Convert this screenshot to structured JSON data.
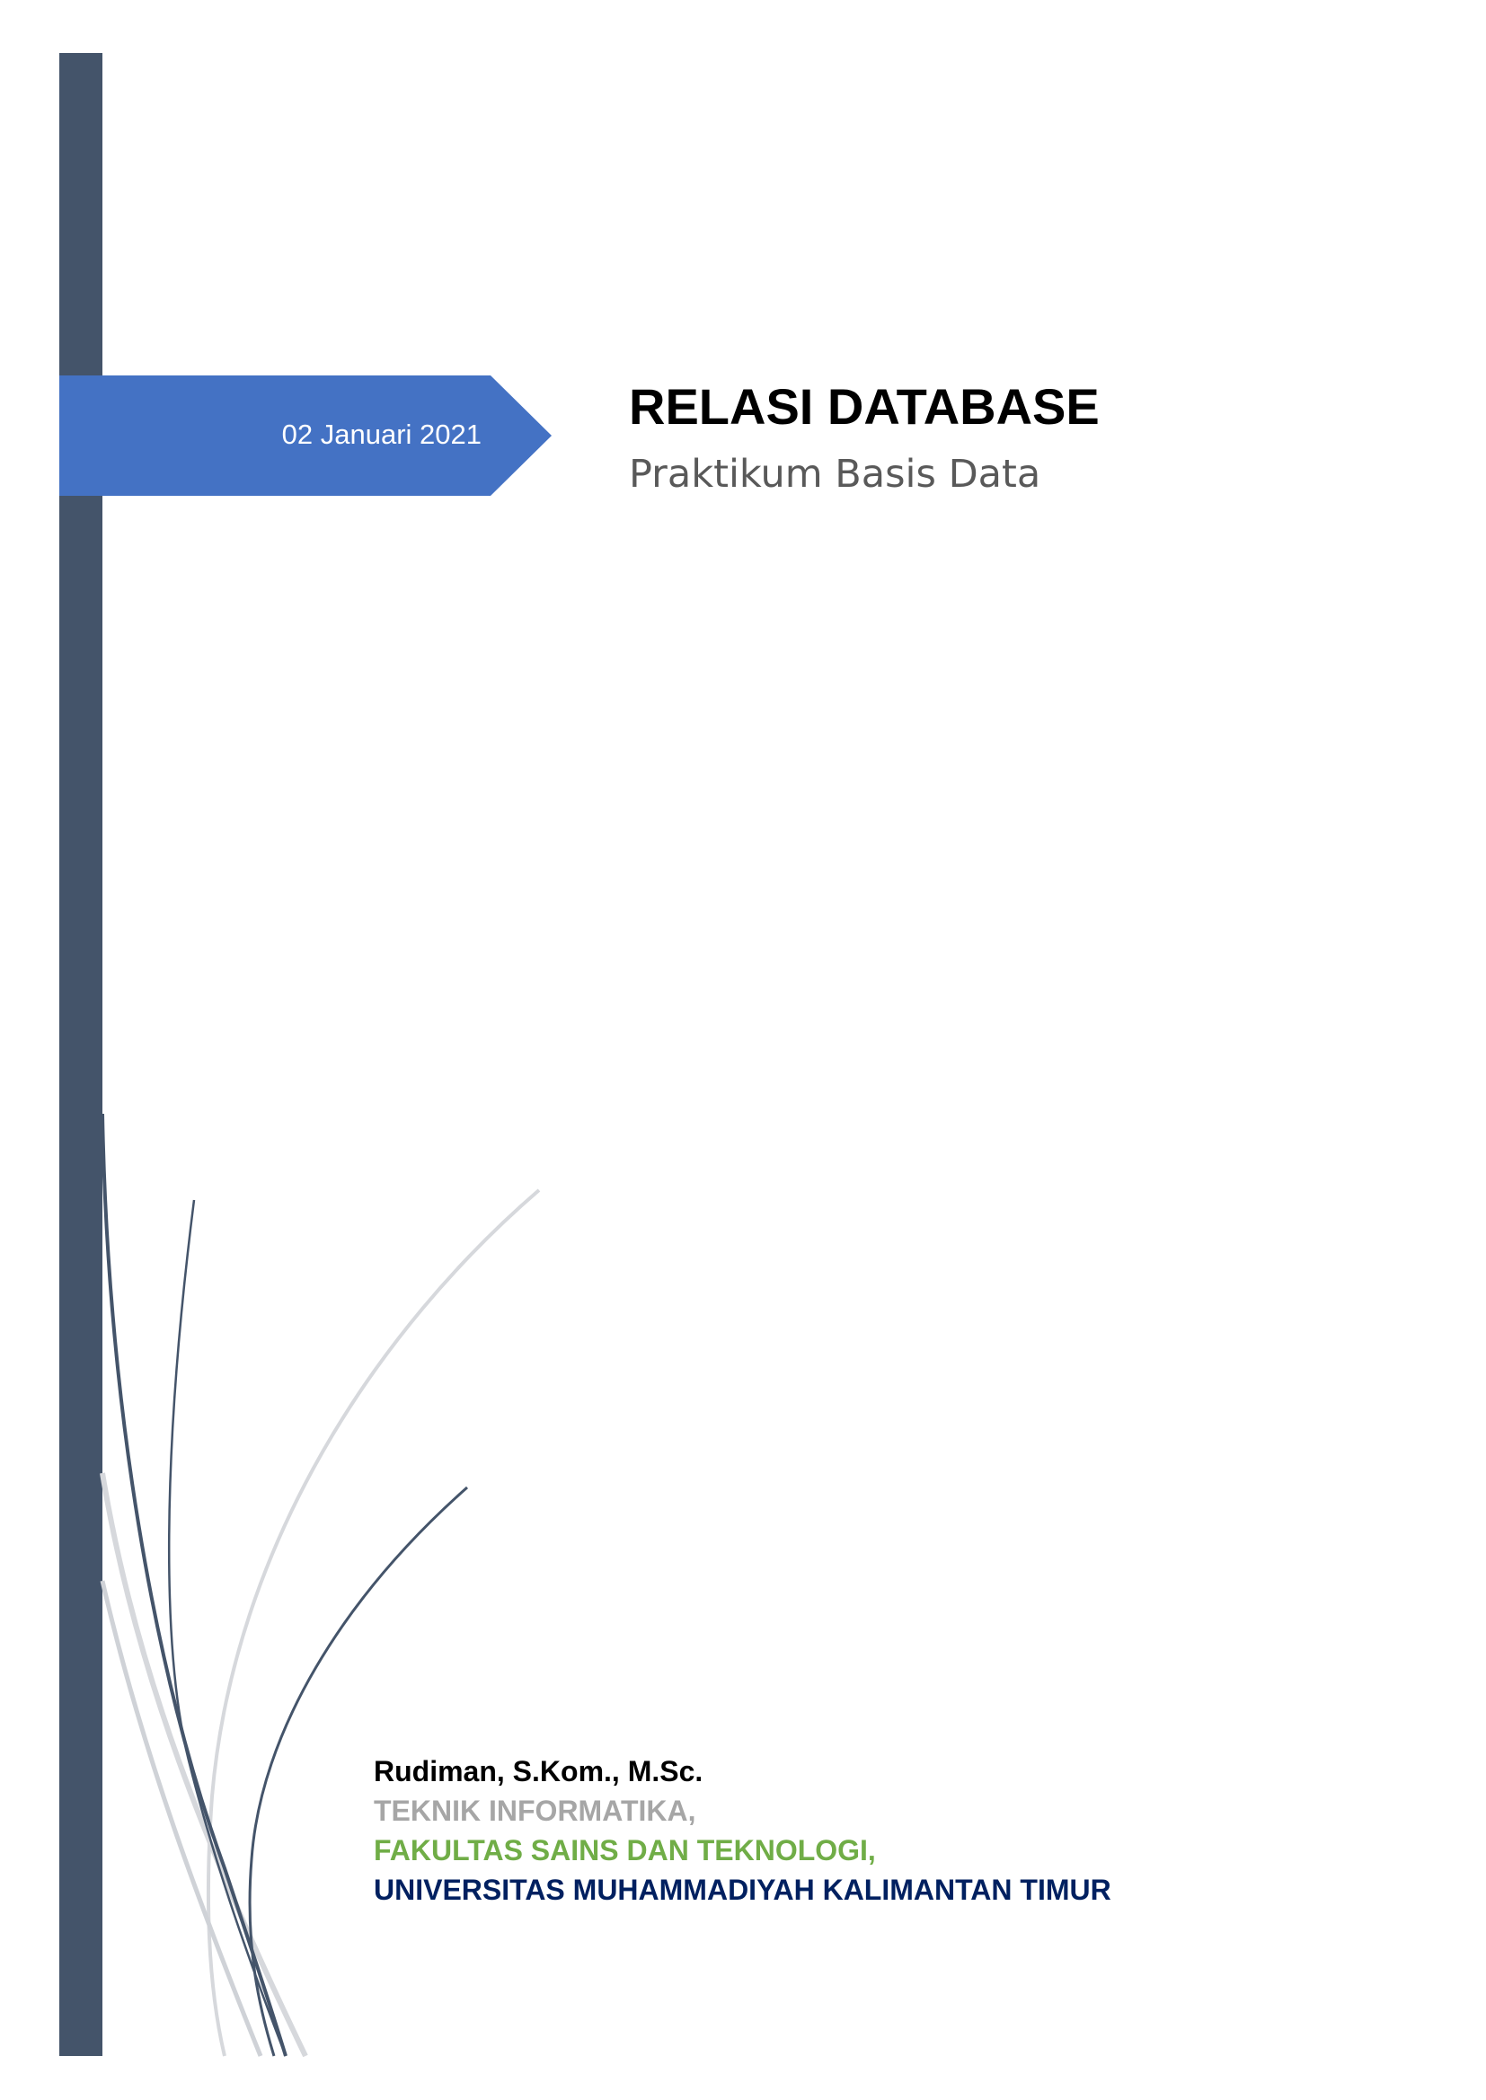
{
  "cover": {
    "date": "02 Januari 2021",
    "title": "RELASI DATABASE",
    "subtitle": "Praktikum Basis Data"
  },
  "author": {
    "name": "Rudiman, S.Kom., M.Sc.",
    "department": "TEKNIK INFORMATIKA,",
    "faculty": "FAKULTAS SAINS DAN TEKNOLOGI,",
    "university": "UNIVERSITAS MUHAMMADIYAH KALIMANTAN TIMUR"
  },
  "colors": {
    "side_bar": "#44546a",
    "date_banner": "#4472c4",
    "department": "#a6a6a6",
    "faculty": "#70ad47",
    "university": "#002060"
  }
}
